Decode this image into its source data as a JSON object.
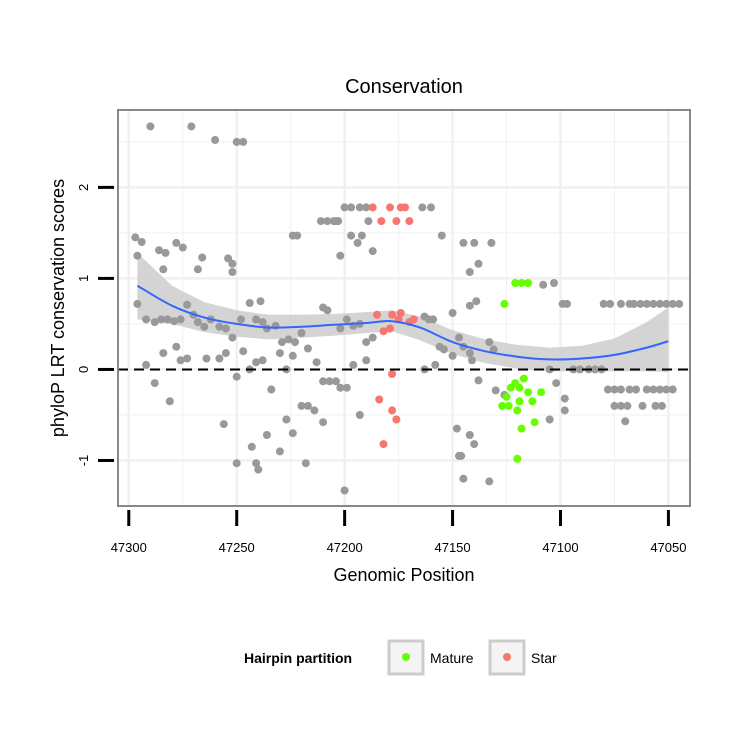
{
  "chart_data": {
    "type": "scatter",
    "title": "Conservation",
    "xlabel": "Genomic Position",
    "ylabel": "phyloP LRT conservation scores",
    "xlim": [
      47305,
      47040
    ],
    "ylim": [
      -1.5,
      2.85
    ],
    "x_ticks": [
      47300,
      47250,
      47200,
      47150,
      47100,
      47050
    ],
    "y_ticks": [
      -1,
      0,
      1,
      2
    ],
    "reference_line": {
      "y": 0,
      "style": "dashed"
    },
    "colors": {
      "other": "#999999",
      "mature": "#66ff00",
      "star": "#f8766d",
      "smooth_line": "#3366ff",
      "ribbon": "#cccccc",
      "panel_grid": "#f0f0f0",
      "panel_border": "#888888"
    },
    "legend": {
      "title": "Hairpin partition",
      "position": "bottom",
      "items": [
        {
          "label": "Mature",
          "series": "mature"
        },
        {
          "label": "Star",
          "series": "star"
        }
      ]
    },
    "smooth": {
      "method": "loess",
      "points": [
        [
          47296,
          0.92,
          0.55,
          1.28
        ],
        [
          47280,
          0.7,
          0.5,
          0.92
        ],
        [
          47265,
          0.57,
          0.41,
          0.74
        ],
        [
          47250,
          0.5,
          0.36,
          0.65
        ],
        [
          47235,
          0.46,
          0.33,
          0.6
        ],
        [
          47220,
          0.47,
          0.35,
          0.6
        ],
        [
          47205,
          0.49,
          0.37,
          0.61
        ],
        [
          47190,
          0.51,
          0.4,
          0.63
        ],
        [
          47178,
          0.53,
          0.42,
          0.65
        ],
        [
          47165,
          0.46,
          0.32,
          0.58
        ],
        [
          47150,
          0.3,
          0.17,
          0.43
        ],
        [
          47135,
          0.2,
          0.07,
          0.33
        ],
        [
          47120,
          0.14,
          0.01,
          0.27
        ],
        [
          47105,
          0.11,
          -0.02,
          0.24
        ],
        [
          47090,
          0.12,
          -0.02,
          0.26
        ],
        [
          47075,
          0.16,
          -0.02,
          0.34
        ],
        [
          47060,
          0.24,
          -0.02,
          0.52
        ],
        [
          47050,
          0.31,
          -0.03,
          0.68
        ]
      ]
    },
    "series": [
      {
        "name": "other",
        "points": [
          [
            47290,
            2.67
          ],
          [
            47271,
            2.67
          ],
          [
            47260,
            2.52
          ],
          [
            47250,
            2.5
          ],
          [
            47247,
            2.5
          ],
          [
            47297,
            1.45
          ],
          [
            47294,
            1.4
          ],
          [
            47286,
            1.31
          ],
          [
            47283,
            1.28
          ],
          [
            47278,
            1.39
          ],
          [
            47275,
            1.34
          ],
          [
            47266,
            1.23
          ],
          [
            47254,
            1.22
          ],
          [
            47252,
            1.16
          ],
          [
            47224,
            1.47
          ],
          [
            47222,
            1.47
          ],
          [
            47211,
            1.63
          ],
          [
            47208,
            1.63
          ],
          [
            47205,
            1.63
          ],
          [
            47203,
            1.63
          ],
          [
            47200,
            1.78
          ],
          [
            47197,
            1.78
          ],
          [
            47193,
            1.78
          ],
          [
            47190,
            1.78
          ],
          [
            47164,
            1.78
          ],
          [
            47160,
            1.78
          ],
          [
            47155,
            1.47
          ],
          [
            47145,
            1.39
          ],
          [
            47140,
            1.39
          ],
          [
            47132,
            1.39
          ],
          [
            47197,
            1.47
          ],
          [
            47192,
            1.47
          ],
          [
            47194,
            1.39
          ],
          [
            47187,
            1.3
          ],
          [
            47189,
            1.63
          ],
          [
            47202,
            1.25
          ],
          [
            47296,
            1.25
          ],
          [
            47284,
            1.1
          ],
          [
            47268,
            1.1
          ],
          [
            47252,
            1.07
          ],
          [
            47138,
            1.16
          ],
          [
            47142,
            1.07
          ],
          [
            47204,
            1.63
          ],
          [
            47296,
            0.72
          ],
          [
            47292,
            0.55
          ],
          [
            47288,
            0.52
          ],
          [
            47285,
            0.55
          ],
          [
            47282,
            0.55
          ],
          [
            47279,
            0.53
          ],
          [
            47276,
            0.55
          ],
          [
            47273,
            0.71
          ],
          [
            47270,
            0.6
          ],
          [
            47268,
            0.52
          ],
          [
            47265,
            0.47
          ],
          [
            47262,
            0.55
          ],
          [
            47258,
            0.47
          ],
          [
            47255,
            0.45
          ],
          [
            47252,
            0.35
          ],
          [
            47248,
            0.55
          ],
          [
            47244,
            0.73
          ],
          [
            47241,
            0.55
          ],
          [
            47238,
            0.52
          ],
          [
            47236,
            0.45
          ],
          [
            47232,
            0.48
          ],
          [
            47229,
            0.3
          ],
          [
            47226,
            0.33
          ],
          [
            47223,
            0.3
          ],
          [
            47220,
            0.4
          ],
          [
            47217,
            0.23
          ],
          [
            47210,
            0.68
          ],
          [
            47208,
            0.65
          ],
          [
            47202,
            0.45
          ],
          [
            47199,
            0.55
          ],
          [
            47196,
            0.48
          ],
          [
            47193,
            0.5
          ],
          [
            47190,
            0.3
          ],
          [
            47187,
            0.35
          ],
          [
            47163,
            0.58
          ],
          [
            47161,
            0.55
          ],
          [
            47159,
            0.55
          ],
          [
            47156,
            0.25
          ],
          [
            47154,
            0.22
          ],
          [
            47150,
            0.62
          ],
          [
            47147,
            0.35
          ],
          [
            47142,
            0.7
          ],
          [
            47139,
            0.75
          ],
          [
            47133,
            0.3
          ],
          [
            47131,
            0.22
          ],
          [
            47108,
            0.93
          ],
          [
            47103,
            0.95
          ],
          [
            47099,
            0.72
          ],
          [
            47097,
            0.72
          ],
          [
            47080,
            0.72
          ],
          [
            47077,
            0.72
          ],
          [
            47072,
            0.72
          ],
          [
            47068,
            0.72
          ],
          [
            47066,
            0.72
          ],
          [
            47063,
            0.72
          ],
          [
            47060,
            0.72
          ],
          [
            47057,
            0.72
          ],
          [
            47054,
            0.72
          ],
          [
            47051,
            0.72
          ],
          [
            47048,
            0.72
          ],
          [
            47045,
            0.72
          ],
          [
            47239,
            0.75
          ],
          [
            47292,
            0.05
          ],
          [
            47288,
            -0.15
          ],
          [
            47284,
            0.18
          ],
          [
            47281,
            -0.35
          ],
          [
            47278,
            0.25
          ],
          [
            47276,
            0.1
          ],
          [
            47273,
            0.12
          ],
          [
            47264,
            0.12
          ],
          [
            47258,
            0.12
          ],
          [
            47255,
            0.18
          ],
          [
            47250,
            -0.08
          ],
          [
            47247,
            0.2
          ],
          [
            47244,
            0.0
          ],
          [
            47241,
            0.08
          ],
          [
            47238,
            0.1
          ],
          [
            47234,
            -0.22
          ],
          [
            47230,
            0.18
          ],
          [
            47227,
            0.0
          ],
          [
            47224,
            0.15
          ],
          [
            47220,
            -0.4
          ],
          [
            47217,
            -0.4
          ],
          [
            47214,
            -0.45
          ],
          [
            47213,
            0.08
          ],
          [
            47210,
            -0.13
          ],
          [
            47207,
            -0.13
          ],
          [
            47204,
            -0.13
          ],
          [
            47202,
            -0.2
          ],
          [
            47199,
            -0.2
          ],
          [
            47196,
            0.05
          ],
          [
            47193,
            -0.5
          ],
          [
            47190,
            0.1
          ],
          [
            47163,
            0.0
          ],
          [
            47158,
            0.05
          ],
          [
            47150,
            0.15
          ],
          [
            47141,
            0.1
          ],
          [
            47138,
            -0.12
          ],
          [
            47130,
            -0.23
          ],
          [
            47126,
            -0.28
          ],
          [
            47105,
            0.0
          ],
          [
            47102,
            -0.15
          ],
          [
            47098,
            -0.32
          ],
          [
            47094,
            0.0
          ],
          [
            47091,
            0.0
          ],
          [
            47087,
            0.0
          ],
          [
            47084,
            0.0
          ],
          [
            47081,
            0.0
          ],
          [
            47078,
            -0.22
          ],
          [
            47075,
            -0.22
          ],
          [
            47072,
            -0.22
          ],
          [
            47068,
            -0.22
          ],
          [
            47065,
            -0.22
          ],
          [
            47060,
            -0.22
          ],
          [
            47057,
            -0.22
          ],
          [
            47054,
            -0.22
          ],
          [
            47051,
            -0.22
          ],
          [
            47048,
            -0.22
          ],
          [
            47075,
            -0.4
          ],
          [
            47072,
            -0.4
          ],
          [
            47069,
            -0.4
          ],
          [
            47062,
            -0.4
          ],
          [
            47056,
            -0.4
          ],
          [
            47053,
            -0.4
          ],
          [
            47256,
            -0.6
          ],
          [
            47250,
            -1.03
          ],
          [
            47243,
            -0.85
          ],
          [
            47241,
            -1.03
          ],
          [
            47240,
            -1.1
          ],
          [
            47236,
            -0.72
          ],
          [
            47230,
            -0.9
          ],
          [
            47227,
            -0.55
          ],
          [
            47224,
            -0.7
          ],
          [
            47218,
            -1.03
          ],
          [
            47210,
            -0.58
          ],
          [
            47200,
            -1.33
          ],
          [
            47148,
            -0.65
          ],
          [
            47146,
            -0.95
          ],
          [
            47142,
            -0.72
          ],
          [
            47140,
            -0.82
          ],
          [
            47145,
            -1.2
          ],
          [
            47133,
            -1.23
          ],
          [
            47147,
            -0.95
          ],
          [
            47105,
            -0.55
          ],
          [
            47098,
            -0.45
          ],
          [
            47070,
            -0.57
          ],
          [
            47145,
            0.25
          ],
          [
            47142,
            0.18
          ]
        ]
      },
      {
        "name": "mature",
        "points": [
          [
            47126,
            0.72
          ],
          [
            47121,
            0.95
          ],
          [
            47118,
            0.95
          ],
          [
            47115,
            0.95
          ],
          [
            47127,
            -0.4
          ],
          [
            47125,
            -0.3
          ],
          [
            47123,
            -0.2
          ],
          [
            47121,
            -0.15
          ],
          [
            47119,
            -0.2
          ],
          [
            47117,
            -0.1
          ],
          [
            47115,
            -0.25
          ],
          [
            47113,
            -0.35
          ],
          [
            47109,
            -0.25
          ],
          [
            47120,
            -0.45
          ],
          [
            47118,
            -0.65
          ],
          [
            47112,
            -0.58
          ],
          [
            47120,
            -0.98
          ],
          [
            47124,
            -0.4
          ],
          [
            47119,
            -0.35
          ]
        ]
      },
      {
        "name": "star",
        "points": [
          [
            47187,
            1.78
          ],
          [
            47183,
            1.63
          ],
          [
            47179,
            1.78
          ],
          [
            47176,
            1.63
          ],
          [
            47174,
            1.78
          ],
          [
            47172,
            1.78
          ],
          [
            47170,
            1.63
          ],
          [
            47178,
            0.6
          ],
          [
            47175,
            0.55
          ],
          [
            47174,
            0.62
          ],
          [
            47170,
            0.52
          ],
          [
            47168,
            0.55
          ],
          [
            47182,
            0.42
          ],
          [
            47179,
            0.45
          ],
          [
            47185,
            0.6
          ],
          [
            47178,
            -0.05
          ],
          [
            47184,
            -0.33
          ],
          [
            47178,
            -0.45
          ],
          [
            47176,
            -0.55
          ],
          [
            47182,
            -0.82
          ]
        ]
      }
    ]
  }
}
